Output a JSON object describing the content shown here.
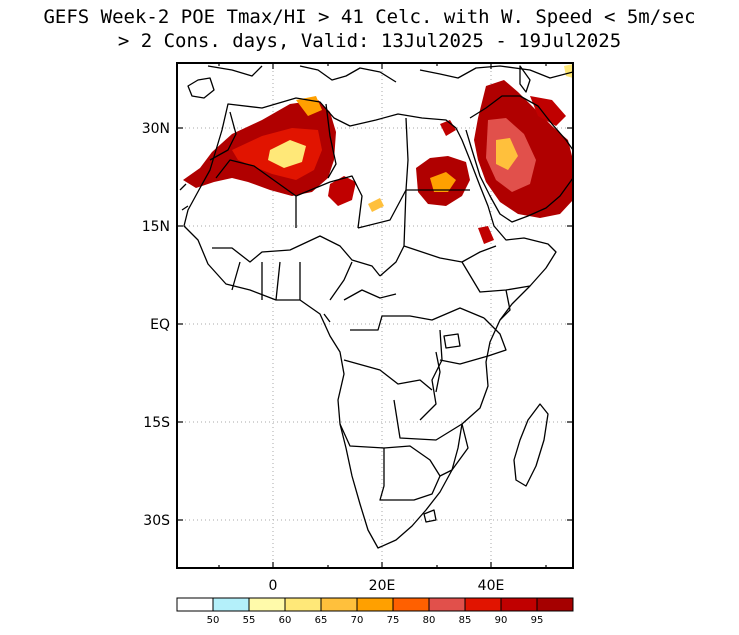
{
  "title": {
    "line1": "GEFS Week-2 POE Tmax/HI > 41 Celc. with W. Speed < 5m/sec",
    "line2": "> 2 Cons. days, Valid: 13Jul2025 - 19Jul2025"
  },
  "map": {
    "region": "Africa",
    "y_tick_labels": [
      "30N",
      "15N",
      "EQ",
      "15S",
      "30S"
    ],
    "x_tick_labels": [
      "0",
      "20E",
      "40E"
    ]
  },
  "colorbar": {
    "labels": [
      "50",
      "55",
      "60",
      "65",
      "70",
      "75",
      "80",
      "85",
      "90",
      "95"
    ],
    "colors": [
      "#ffffff",
      "#b4f0fa",
      "#fffaaa",
      "#ffe878",
      "#ffc03c",
      "#ffa000",
      "#ff6000",
      "#e1504b",
      "#e11400",
      "#c00000",
      "#a50000"
    ]
  }
}
